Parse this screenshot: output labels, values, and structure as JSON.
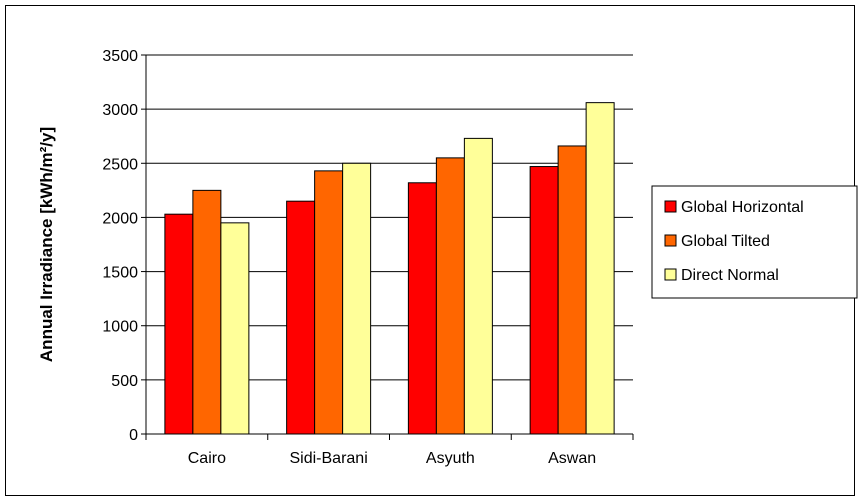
{
  "chart_data": {
    "type": "bar",
    "title": "",
    "xlabel": "",
    "ylabel": "Annual Irradiance [kWh/m²/y]",
    "ylim": [
      0,
      3500
    ],
    "yticks": [
      0,
      500,
      1000,
      1500,
      2000,
      2500,
      3000,
      3500
    ],
    "grid": true,
    "legend_position": "right",
    "categories": [
      "Cairo",
      "Sidi-Barani",
      "Asyuth",
      "Aswan"
    ],
    "series": [
      {
        "name": "Global Horizontal",
        "color": "#ff0000",
        "values": [
          2030,
          2150,
          2320,
          2470
        ]
      },
      {
        "name": "Global Tilted",
        "color": "#ff6600",
        "values": [
          2250,
          2430,
          2550,
          2660
        ]
      },
      {
        "name": "Direct Normal",
        "color": "#ffff99",
        "values": [
          1950,
          2500,
          2730,
          3060
        ]
      }
    ]
  }
}
